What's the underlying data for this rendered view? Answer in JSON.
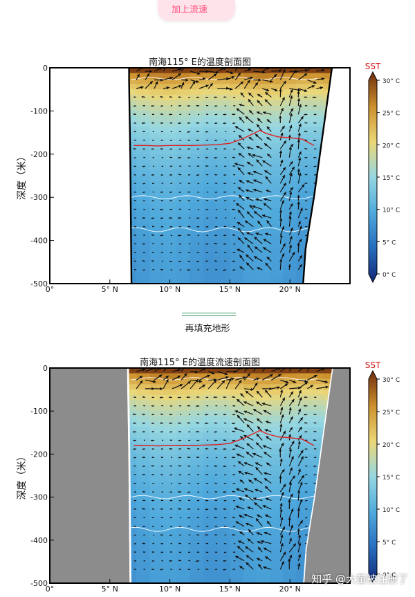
{
  "header": {
    "button_label": "加上流速"
  },
  "caption": "再填充地形",
  "watermark": "知乎 @大苗被注册了",
  "chart_data": [
    {
      "type": "heatmap",
      "title": "南海115° E的温度剖面图",
      "ylabel": "深度（米）",
      "xlabel": "",
      "x_ticks": [
        0,
        5,
        10,
        15,
        20
      ],
      "x_tick_labels": [
        "0°",
        "5° N",
        "10° N",
        "15° N",
        "20° N"
      ],
      "y_ticks": [
        0,
        -100,
        -200,
        -300,
        -400,
        -500
      ],
      "y_tick_labels": [
        "0",
        "-100",
        "-200",
        "-300",
        "-400",
        "-500"
      ],
      "xlim": [
        0,
        25
      ],
      "ylim": [
        -500,
        0
      ],
      "terrain_fill": false,
      "thermocline_x": [
        7,
        8,
        9,
        10,
        11,
        12,
        13,
        14,
        15,
        16,
        17,
        17.5,
        18,
        19,
        20,
        21,
        22
      ],
      "thermocline_y": [
        -180,
        -180,
        -181,
        -180,
        -180,
        -180,
        -179,
        -178,
        -175,
        -165,
        -152,
        -145,
        -152,
        -160,
        -162,
        -165,
        -180
      ],
      "colorbar": {
        "label": "SST",
        "ticks": [
          0,
          5,
          10,
          15,
          20,
          25,
          30
        ],
        "tick_labels": [
          "0° C",
          "5° C",
          "10° C",
          "15° C",
          "20° C",
          "25° C",
          "30° C"
        ]
      }
    },
    {
      "type": "heatmap",
      "title": "南海115° E的温度流速剖面图",
      "ylabel": "深度（米）",
      "xlabel": "",
      "x_ticks": [
        0,
        5,
        10,
        15,
        20
      ],
      "x_tick_labels": [
        "0°",
        "5° N",
        "10° N",
        "15° N",
        "20° N"
      ],
      "y_ticks": [
        0,
        -100,
        -200,
        -300,
        -400,
        -500
      ],
      "y_tick_labels": [
        "0",
        "-100",
        "-200",
        "-300",
        "-400",
        "-500"
      ],
      "xlim": [
        0,
        25
      ],
      "ylim": [
        -500,
        0
      ],
      "terrain_fill": true,
      "thermocline_x": [
        7,
        8,
        9,
        10,
        11,
        12,
        13,
        14,
        15,
        16,
        17,
        17.5,
        18,
        19,
        20,
        21,
        22
      ],
      "thermocline_y": [
        -180,
        -180,
        -181,
        -180,
        -180,
        -180,
        -179,
        -178,
        -175,
        -165,
        -152,
        -145,
        -152,
        -160,
        -162,
        -165,
        -180
      ],
      "colorbar": {
        "label": "SST",
        "ticks": [
          0,
          5,
          10,
          15,
          20,
          25,
          30
        ],
        "tick_labels": [
          "0° C",
          "5° C",
          "10° C",
          "15° C",
          "20° C",
          "25° C",
          "30° C"
        ]
      }
    }
  ]
}
